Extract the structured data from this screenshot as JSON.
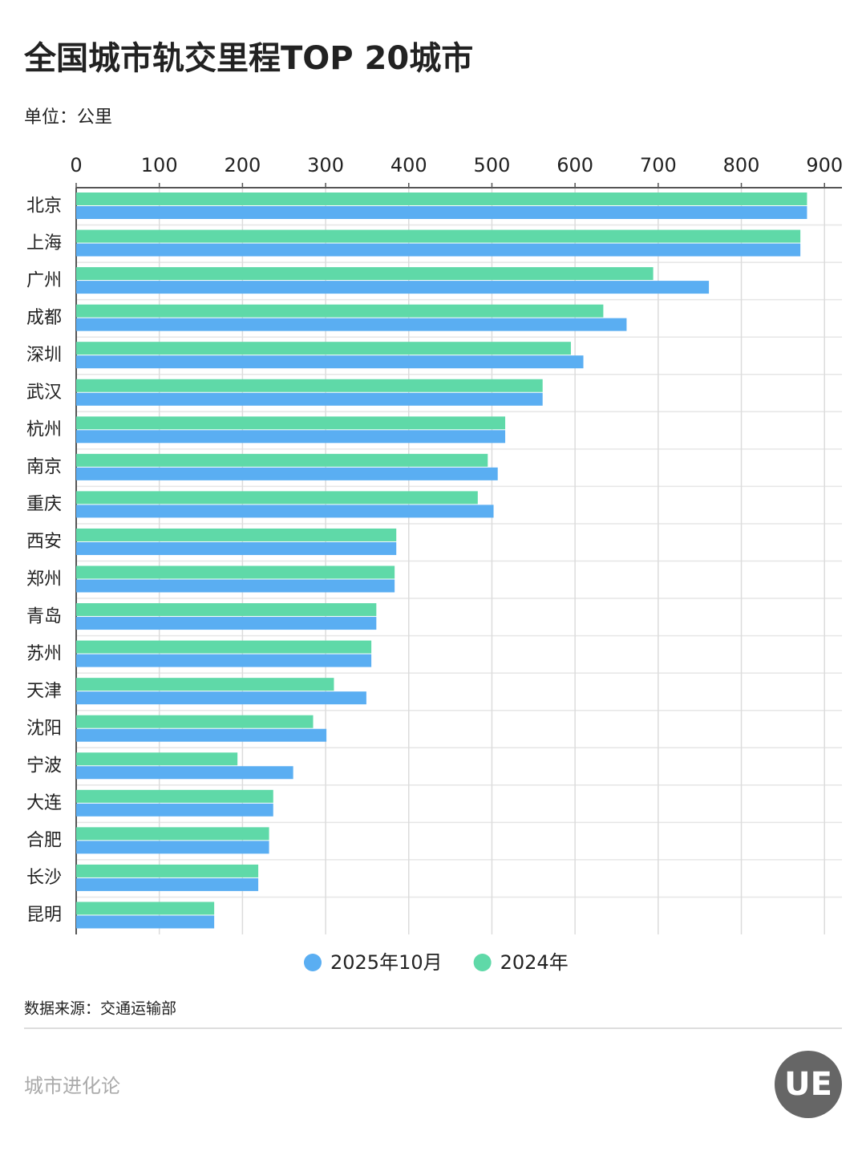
{
  "chart_data": {
    "type": "barh",
    "title": "全国城市轨交里程TOP 20城市",
    "subtitle": "单位：公里",
    "categories": [
      "北京",
      "上海",
      "广州",
      "成都",
      "深圳",
      "武汉",
      "杭州",
      "南京",
      "重庆",
      "西安",
      "郑州",
      "青岛",
      "苏州",
      "天津",
      "沈阳",
      "宁波",
      "大连",
      "合肥",
      "长沙",
      "昆明"
    ],
    "series": [
      {
        "name": "2024年",
        "color": "#5fd9a8",
        "values": [
          879,
          871,
          694,
          634,
          595,
          561,
          516,
          495,
          483,
          385,
          383,
          361,
          355,
          310,
          285,
          194,
          237,
          232,
          219,
          166
        ]
      },
      {
        "name": "2025年10月",
        "color": "#5aaef2",
        "values": [
          879,
          871,
          761,
          662,
          610,
          561,
          516,
          507,
          502,
          385,
          383,
          361,
          355,
          349,
          301,
          261,
          237,
          232,
          219,
          166
        ]
      }
    ],
    "xlim": [
      0,
      921
    ],
    "xticks": [
      0,
      100,
      200,
      300,
      400,
      500,
      600,
      700,
      800,
      900
    ],
    "grid": true,
    "legend_order": [
      1,
      0
    ],
    "source": "数据来源：交通运输部",
    "brand": "城市进化论",
    "logo": "UE"
  }
}
